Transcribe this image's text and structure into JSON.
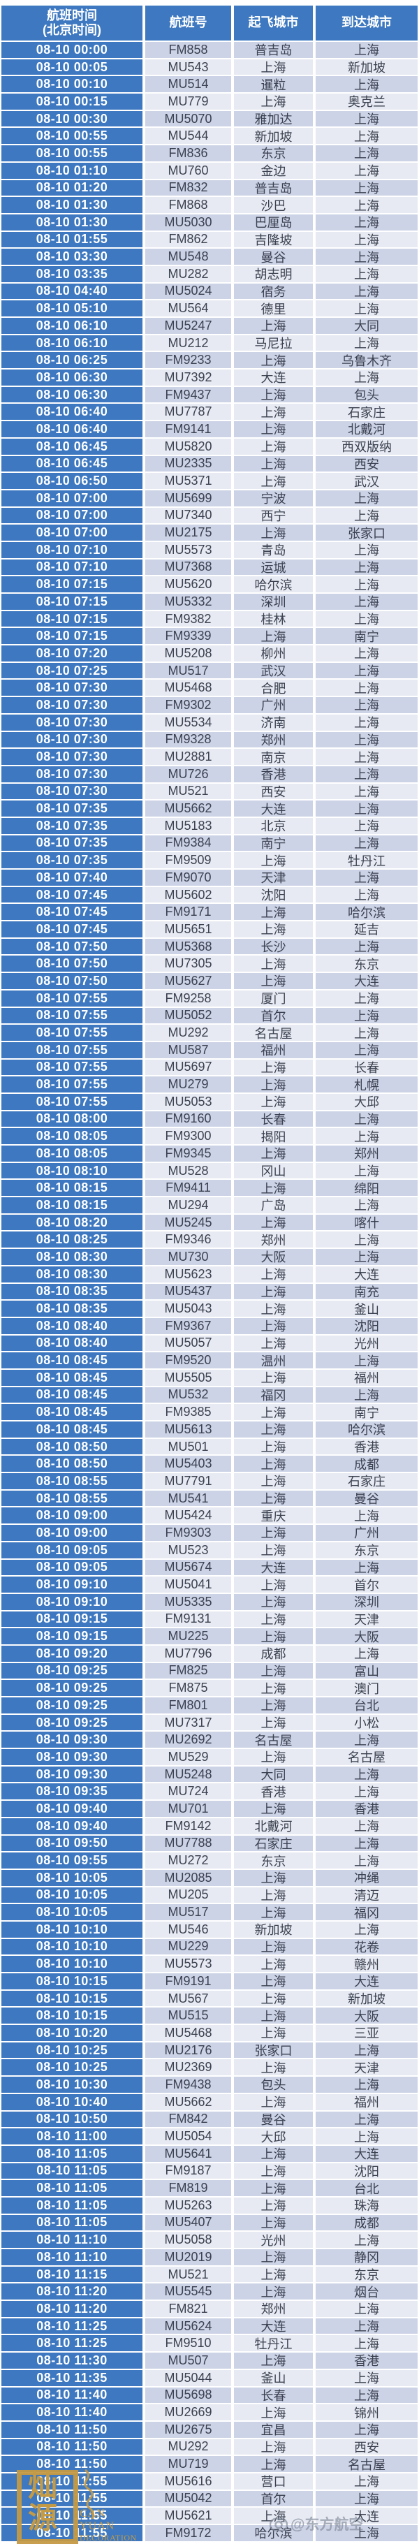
{
  "colors": {
    "header_blue": "#3d78c0",
    "row_dark": "#ccd3e6",
    "row_light": "#e7eaf2",
    "ink": "#3b4150",
    "seal_gold": "#c49a45",
    "watermark_gray": "#7a8494"
  },
  "header": {
    "time_line1": "航班时间",
    "time_line2": "(北京时间)",
    "flight_no": "航班号",
    "from_city": "起飞城市",
    "to_city": "到达城市"
  },
  "watermarks": {
    "seal_char1": "灿",
    "seal_char2": "源",
    "seal_en_line1": "CAN YUAN",
    "seal_en_line2": "DECORATION",
    "airline_handle": "@东方航空"
  },
  "rows": [
    [
      "08-10 00:00",
      "FM858",
      "普吉岛",
      "上海"
    ],
    [
      "08-10 00:05",
      "MU543",
      "上海",
      "新加坡"
    ],
    [
      "08-10 00:10",
      "MU514",
      "暹粒",
      "上海"
    ],
    [
      "08-10 00:15",
      "MU779",
      "上海",
      "奥克兰"
    ],
    [
      "08-10 00:30",
      "MU5070",
      "雅加达",
      "上海"
    ],
    [
      "08-10 00:55",
      "MU544",
      "新加坡",
      "上海"
    ],
    [
      "08-10 00:55",
      "FM836",
      "东京",
      "上海"
    ],
    [
      "08-10 01:10",
      "MU760",
      "金边",
      "上海"
    ],
    [
      "08-10 01:20",
      "FM832",
      "普吉岛",
      "上海"
    ],
    [
      "08-10 01:30",
      "FM868",
      "沙巴",
      "上海"
    ],
    [
      "08-10 01:30",
      "MU5030",
      "巴厘岛",
      "上海"
    ],
    [
      "08-10 01:55",
      "FM862",
      "吉隆坡",
      "上海"
    ],
    [
      "08-10 03:30",
      "MU548",
      "曼谷",
      "上海"
    ],
    [
      "08-10 03:35",
      "MU282",
      "胡志明",
      "上海"
    ],
    [
      "08-10 04:40",
      "MU5024",
      "宿务",
      "上海"
    ],
    [
      "08-10 05:10",
      "MU564",
      "德里",
      "上海"
    ],
    [
      "08-10 06:10",
      "MU5247",
      "上海",
      "大同"
    ],
    [
      "08-10 06:10",
      "MU212",
      "马尼拉",
      "上海"
    ],
    [
      "08-10 06:25",
      "FM9233",
      "上海",
      "乌鲁木齐"
    ],
    [
      "08-10 06:30",
      "MU7392",
      "大连",
      "上海"
    ],
    [
      "08-10 06:30",
      "FM9437",
      "上海",
      "包头"
    ],
    [
      "08-10 06:40",
      "MU7787",
      "上海",
      "石家庄"
    ],
    [
      "08-10 06:40",
      "FM9141",
      "上海",
      "北戴河"
    ],
    [
      "08-10 06:45",
      "MU5820",
      "上海",
      "西双版纳"
    ],
    [
      "08-10 06:45",
      "MU2335",
      "上海",
      "西安"
    ],
    [
      "08-10 06:50",
      "MU5371",
      "上海",
      "武汉"
    ],
    [
      "08-10 07:00",
      "MU5699",
      "宁波",
      "上海"
    ],
    [
      "08-10 07:00",
      "MU7340",
      "西宁",
      "上海"
    ],
    [
      "08-10 07:00",
      "MU2175",
      "上海",
      "张家口"
    ],
    [
      "08-10 07:10",
      "MU5573",
      "青岛",
      "上海"
    ],
    [
      "08-10 07:10",
      "MU7368",
      "运城",
      "上海"
    ],
    [
      "08-10 07:15",
      "MU5620",
      "哈尔滨",
      "上海"
    ],
    [
      "08-10 07:15",
      "MU5332",
      "深圳",
      "上海"
    ],
    [
      "08-10 07:15",
      "FM9382",
      "桂林",
      "上海"
    ],
    [
      "08-10 07:15",
      "FM9339",
      "上海",
      "南宁"
    ],
    [
      "08-10 07:20",
      "MU5208",
      "柳州",
      "上海"
    ],
    [
      "08-10 07:25",
      "MU517",
      "武汉",
      "上海"
    ],
    [
      "08-10 07:30",
      "MU5468",
      "合肥",
      "上海"
    ],
    [
      "08-10 07:30",
      "FM9302",
      "广州",
      "上海"
    ],
    [
      "08-10 07:30",
      "MU5534",
      "济南",
      "上海"
    ],
    [
      "08-10 07:30",
      "FM9328",
      "郑州",
      "上海"
    ],
    [
      "08-10 07:30",
      "MU2881",
      "南京",
      "上海"
    ],
    [
      "08-10 07:30",
      "MU726",
      "香港",
      "上海"
    ],
    [
      "08-10 07:30",
      "MU521",
      "西安",
      "上海"
    ],
    [
      "08-10 07:35",
      "MU5662",
      "大连",
      "上海"
    ],
    [
      "08-10 07:35",
      "MU5183",
      "北京",
      "上海"
    ],
    [
      "08-10 07:35",
      "FM9384",
      "南宁",
      "上海"
    ],
    [
      "08-10 07:35",
      "FM9509",
      "上海",
      "牡丹江"
    ],
    [
      "08-10 07:40",
      "FM9070",
      "天津",
      "上海"
    ],
    [
      "08-10 07:45",
      "MU5602",
      "沈阳",
      "上海"
    ],
    [
      "08-10 07:45",
      "FM9171",
      "上海",
      "哈尔滨"
    ],
    [
      "08-10 07:45",
      "MU5651",
      "上海",
      "延吉"
    ],
    [
      "08-10 07:50",
      "MU5368",
      "长沙",
      "上海"
    ],
    [
      "08-10 07:50",
      "MU7305",
      "上海",
      "东京"
    ],
    [
      "08-10 07:50",
      "MU5627",
      "上海",
      "大连"
    ],
    [
      "08-10 07:55",
      "FM9258",
      "厦门",
      "上海"
    ],
    [
      "08-10 07:55",
      "MU5052",
      "首尔",
      "上海"
    ],
    [
      "08-10 07:55",
      "MU292",
      "名古屋",
      "上海"
    ],
    [
      "08-10 07:55",
      "MU587",
      "福州",
      "上海"
    ],
    [
      "08-10 07:55",
      "MU5697",
      "上海",
      "长春"
    ],
    [
      "08-10 07:55",
      "MU279",
      "上海",
      "札幌"
    ],
    [
      "08-10 07:55",
      "MU5053",
      "上海",
      "大邱"
    ],
    [
      "08-10 08:00",
      "FM9160",
      "长春",
      "上海"
    ],
    [
      "08-10 08:05",
      "FM9300",
      "揭阳",
      "上海"
    ],
    [
      "08-10 08:05",
      "FM9345",
      "上海",
      "郑州"
    ],
    [
      "08-10 08:10",
      "MU528",
      "冈山",
      "上海"
    ],
    [
      "08-10 08:15",
      "FM9411",
      "上海",
      "绵阳"
    ],
    [
      "08-10 08:15",
      "MU294",
      "广岛",
      "上海"
    ],
    [
      "08-10 08:20",
      "MU5245",
      "上海",
      "喀什"
    ],
    [
      "08-10 08:25",
      "FM9346",
      "郑州",
      "上海"
    ],
    [
      "08-10 08:30",
      "MU730",
      "大阪",
      "上海"
    ],
    [
      "08-10 08:30",
      "MU5623",
      "上海",
      "大连"
    ],
    [
      "08-10 08:35",
      "MU5437",
      "上海",
      "南充"
    ],
    [
      "08-10 08:35",
      "MU5043",
      "上海",
      "釜山"
    ],
    [
      "08-10 08:40",
      "FM9367",
      "上海",
      "沈阳"
    ],
    [
      "08-10 08:40",
      "MU5057",
      "上海",
      "光州"
    ],
    [
      "08-10 08:45",
      "FM9520",
      "温州",
      "上海"
    ],
    [
      "08-10 08:45",
      "MU5505",
      "上海",
      "福州"
    ],
    [
      "08-10 08:45",
      "MU532",
      "福冈",
      "上海"
    ],
    [
      "08-10 08:45",
      "FM9385",
      "上海",
      "南宁"
    ],
    [
      "08-10 08:45",
      "MU5613",
      "上海",
      "哈尔滨"
    ],
    [
      "08-10 08:50",
      "MU501",
      "上海",
      "香港"
    ],
    [
      "08-10 08:50",
      "MU5403",
      "上海",
      "成都"
    ],
    [
      "08-10 08:55",
      "MU7791",
      "上海",
      "石家庄"
    ],
    [
      "08-10 08:55",
      "MU541",
      "上海",
      "曼谷"
    ],
    [
      "08-10 09:00",
      "MU5424",
      "重庆",
      "上海"
    ],
    [
      "08-10 09:00",
      "FM9303",
      "上海",
      "广州"
    ],
    [
      "08-10 09:05",
      "MU523",
      "上海",
      "东京"
    ],
    [
      "08-10 09:05",
      "MU5674",
      "大连",
      "上海"
    ],
    [
      "08-10 09:10",
      "MU5041",
      "上海",
      "首尔"
    ],
    [
      "08-10 09:10",
      "MU5335",
      "上海",
      "深圳"
    ],
    [
      "08-10 09:15",
      "FM9131",
      "上海",
      "天津"
    ],
    [
      "08-10 09:15",
      "MU225",
      "上海",
      "大阪"
    ],
    [
      "08-10 09:20",
      "MU7796",
      "成都",
      "上海"
    ],
    [
      "08-10 09:25",
      "FM825",
      "上海",
      "富山"
    ],
    [
      "08-10 09:25",
      "FM875",
      "上海",
      "澳门"
    ],
    [
      "08-10 09:25",
      "FM801",
      "上海",
      "台北"
    ],
    [
      "08-10 09:25",
      "MU7317",
      "上海",
      "小松"
    ],
    [
      "08-10 09:30",
      "MU2692",
      "名古屋",
      "上海"
    ],
    [
      "08-10 09:30",
      "MU529",
      "上海",
      "名古屋"
    ],
    [
      "08-10 09:30",
      "MU5248",
      "大同",
      "上海"
    ],
    [
      "08-10 09:35",
      "MU724",
      "香港",
      "上海"
    ],
    [
      "08-10 09:40",
      "MU701",
      "上海",
      "香港"
    ],
    [
      "08-10 09:40",
      "FM9142",
      "北戴河",
      "上海"
    ],
    [
      "08-10 09:50",
      "MU7788",
      "石家庄",
      "上海"
    ],
    [
      "08-10 09:55",
      "MU272",
      "东京",
      "上海"
    ],
    [
      "08-10 10:05",
      "MU2085",
      "上海",
      "冲绳"
    ],
    [
      "08-10 10:05",
      "MU205",
      "上海",
      "清迈"
    ],
    [
      "08-10 10:05",
      "MU517",
      "上海",
      "福冈"
    ],
    [
      "08-10 10:10",
      "MU546",
      "新加坡",
      "上海"
    ],
    [
      "08-10 10:10",
      "MU229",
      "上海",
      "花卷"
    ],
    [
      "08-10 10:10",
      "MU5573",
      "上海",
      "赣州"
    ],
    [
      "08-10 10:15",
      "FM9191",
      "上海",
      "大连"
    ],
    [
      "08-10 10:15",
      "MU567",
      "上海",
      "新加坡"
    ],
    [
      "08-10 10:15",
      "MU515",
      "上海",
      "大阪"
    ],
    [
      "08-10 10:20",
      "MU5468",
      "上海",
      "三亚"
    ],
    [
      "08-10 10:25",
      "MU2176",
      "张家口",
      "上海"
    ],
    [
      "08-10 10:25",
      "MU2369",
      "上海",
      "天津"
    ],
    [
      "08-10 10:30",
      "FM9438",
      "包头",
      "上海"
    ],
    [
      "08-10 10:40",
      "MU5662",
      "上海",
      "福州"
    ],
    [
      "08-10 10:50",
      "FM842",
      "曼谷",
      "上海"
    ],
    [
      "08-10 11:00",
      "MU5054",
      "大邱",
      "上海"
    ],
    [
      "08-10 11:05",
      "MU5641",
      "上海",
      "大连"
    ],
    [
      "08-10 11:05",
      "FM9187",
      "上海",
      "沈阳"
    ],
    [
      "08-10 11:05",
      "FM819",
      "上海",
      "台北"
    ],
    [
      "08-10 11:05",
      "MU5263",
      "上海",
      "珠海"
    ],
    [
      "08-10 11:05",
      "MU5407",
      "上海",
      "成都"
    ],
    [
      "08-10 11:10",
      "MU5058",
      "光州",
      "上海"
    ],
    [
      "08-10 11:10",
      "MU2019",
      "上海",
      "静冈"
    ],
    [
      "08-10 11:15",
      "MU521",
      "上海",
      "东京"
    ],
    [
      "08-10 11:20",
      "MU5545",
      "上海",
      "烟台"
    ],
    [
      "08-10 11:20",
      "FM821",
      "郑州",
      "上海"
    ],
    [
      "08-10 11:25",
      "MU5624",
      "大连",
      "上海"
    ],
    [
      "08-10 11:25",
      "FM9510",
      "牡丹江",
      "上海"
    ],
    [
      "08-10 11:30",
      "MU507",
      "上海",
      "香港"
    ],
    [
      "08-10 11:35",
      "MU5044",
      "釜山",
      "上海"
    ],
    [
      "08-10 11:40",
      "MU5698",
      "长春",
      "上海"
    ],
    [
      "08-10 11:40",
      "MU2669",
      "上海",
      "锦州"
    ],
    [
      "08-10 11:50",
      "MU2675",
      "宜昌",
      "上海"
    ],
    [
      "08-10 11:50",
      "MU292",
      "上海",
      "西安"
    ],
    [
      "08-10 11:50",
      "MU719",
      "上海",
      "名古屋"
    ],
    [
      "08-10 11:55",
      "MU5616",
      "营口",
      "上海"
    ],
    [
      "08-10 11:55",
      "MU5042",
      "首尔",
      "上海"
    ],
    [
      "08-10 11:55",
      "MU5621",
      "上海",
      "大连"
    ],
    [
      "08-10 11:55",
      "FM9172",
      "哈尔滨",
      "上海"
    ]
  ]
}
